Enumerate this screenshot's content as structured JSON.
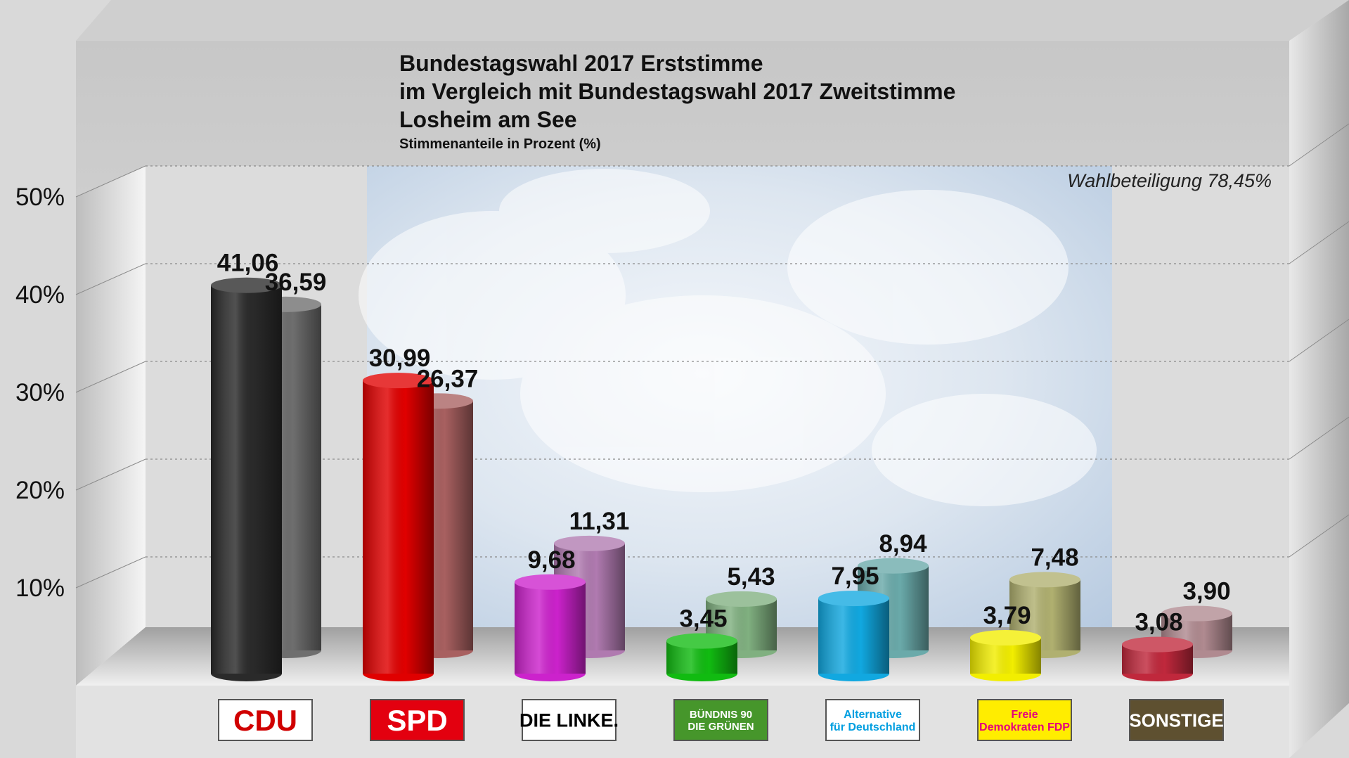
{
  "chart_data": {
    "type": "bar",
    "title": [
      "Bundestagswahl 2017 Erststimme",
      "im Vergleich mit Bundestagswahl 2017 Zweitstimme",
      "Losheim am See"
    ],
    "subtitle": "Stimmenanteile in Prozent (%)",
    "annotation": "Wahlbeteiligung 78,45%",
    "ylim": [
      0,
      50
    ],
    "yticks": [
      10,
      20,
      30,
      40,
      50
    ],
    "ytick_labels": [
      "10%",
      "20%",
      "30%",
      "40%",
      "50%"
    ],
    "categories": [
      "CDU",
      "SPD",
      "DIE LINKE.",
      "BÜNDNIS 90 DIE GRÜNEN",
      "Alternative für Deutschland",
      "Freie Demokraten FDP",
      "SONSTIGE"
    ],
    "series": [
      {
        "values": [
          41.06,
          30.99,
          9.68,
          3.45,
          7.95,
          3.79,
          3.08
        ],
        "labels": [
          "41,06",
          "30,99",
          "9,68",
          "3,45",
          "7,95",
          "3,79",
          "3,08"
        ],
        "colors": [
          "#2a2a2a",
          "#e00000",
          "#cc22cc",
          "#11bb11",
          "#11a8e0",
          "#f2ee00",
          "#c0283c"
        ]
      },
      {
        "values": [
          36.59,
          26.37,
          11.31,
          5.43,
          8.94,
          7.48,
          3.9
        ],
        "labels": [
          "36,59",
          "26,37",
          "11,31",
          "5,43",
          "8,94",
          "7,48",
          "3,90"
        ],
        "colors": [
          "#6e6e6e",
          "#a86060",
          "#b07ab0",
          "#80b080",
          "#6aaaaa",
          "#b0b070",
          "#b08a90"
        ]
      }
    ],
    "grid": true,
    "legend": "none"
  },
  "logos": [
    {
      "text": "CDU",
      "bg": "#ffffff",
      "fg": "#d00000"
    },
    {
      "text": "SPD",
      "bg": "#e3000f",
      "fg": "#ffffff"
    },
    {
      "text": "DIE LINKE.",
      "bg": "#ffffff",
      "fg": "#000000"
    },
    {
      "text": "BÜNDNIS 90 DIE GRÜNEN",
      "bg": "#46962b",
      "fg": "#ffffff"
    },
    {
      "text": "Alternative für Deutschland",
      "bg": "#ffffff",
      "fg": "#009ee0"
    },
    {
      "text": "Freie Demokraten FDP",
      "bg": "#ffed00",
      "fg": "#e5007d"
    },
    {
      "text": "SONSTIGE",
      "bg": "#5e5030",
      "fg": "#ffffff"
    }
  ]
}
